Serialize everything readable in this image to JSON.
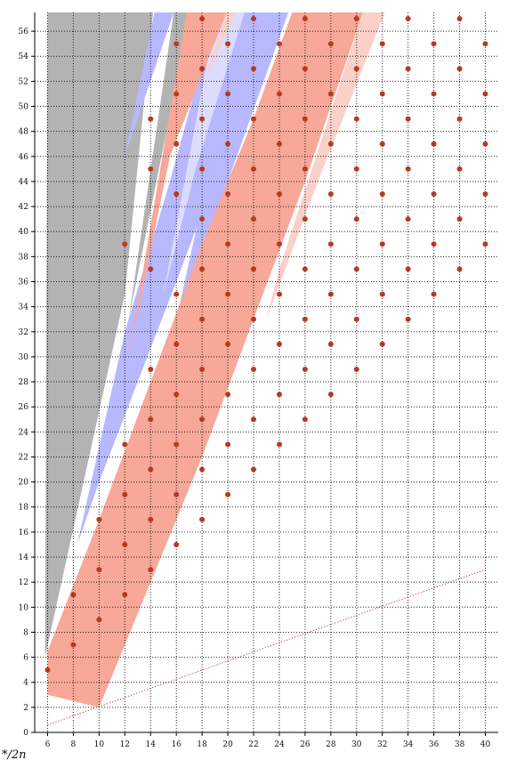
{
  "chart_data": {
    "type": "scatter",
    "title": "",
    "xlabel": "",
    "ylabel": "",
    "corner_label": "*/2n",
    "xlim": [
      5,
      41
    ],
    "ylim": [
      0,
      57.5
    ],
    "x_ticks": [
      6,
      8,
      10,
      12,
      14,
      16,
      18,
      20,
      22,
      24,
      26,
      28,
      30,
      32,
      34,
      36,
      38,
      40
    ],
    "y_ticks": [
      0,
      2,
      4,
      6,
      8,
      10,
      12,
      14,
      16,
      18,
      20,
      22,
      24,
      26,
      28,
      30,
      32,
      34,
      36,
      38,
      40,
      42,
      44,
      46,
      48,
      50,
      52,
      54,
      56
    ],
    "grid": "dotted",
    "colors": {
      "gray_region": "#b3b3b3",
      "blue_region": "#b8b8ff",
      "light_blue_region": "#dcdcff",
      "red_region": "#f7a898",
      "light_red_region": "#fbd0c8",
      "points": "#b83a1e",
      "dotted_line": "#c0392b",
      "axis": "#000000"
    },
    "regions": [
      {
        "name": "gray-region",
        "color": "gray_region",
        "polygon": [
          [
            6,
            57.5
          ],
          [
            14.2,
            57.5
          ],
          [
            12,
            35
          ],
          [
            5.8,
            6
          ]
        ]
      },
      {
        "name": "gray-wedge-upper",
        "color": "gray_region",
        "polygon": [
          [
            15.8,
            57.5
          ],
          [
            17.1,
            57.5
          ],
          [
            12.3,
            33
          ]
        ]
      },
      {
        "name": "blue-wedge-upper",
        "color": "blue_region",
        "polygon": [
          [
            14.3,
            57.5
          ],
          [
            15.8,
            57.5
          ],
          [
            12,
            46
          ]
        ]
      },
      {
        "name": "blue-band-mid",
        "color": "blue_region",
        "polygon": [
          [
            8.3,
            15
          ],
          [
            10,
            20
          ],
          [
            16,
            36
          ],
          [
            20,
            47
          ],
          [
            23.5,
            57.5
          ],
          [
            19.1,
            57.5
          ],
          [
            15.5,
            44
          ],
          [
            12,
            32
          ]
        ]
      },
      {
        "name": "light-blue-band",
        "color": "light_blue_region",
        "polygon": [
          [
            19.1,
            57.5
          ],
          [
            21.3,
            57.5
          ],
          [
            17.5,
            45
          ],
          [
            15,
            35
          ]
        ]
      },
      {
        "name": "blue-band-right",
        "color": "blue_region",
        "polygon": [
          [
            21.3,
            57.5
          ],
          [
            24.7,
            57.5
          ],
          [
            20,
            44
          ],
          [
            16,
            33
          ]
        ]
      },
      {
        "name": "red-wedge-upper",
        "color": "red_region",
        "polygon": [
          [
            12.2,
            29.5
          ],
          [
            16.8,
            57.5
          ],
          [
            19.9,
            57.5
          ],
          [
            15.5,
            46
          ]
        ]
      },
      {
        "name": "light-red-wedge-upper",
        "color": "light_red_region",
        "polygon": [
          [
            19.9,
            57.5
          ],
          [
            20.6,
            57.5
          ],
          [
            18.2,
            52
          ]
        ]
      },
      {
        "name": "red-band-lower",
        "color": "red_region",
        "polygon": [
          [
            6,
            3
          ],
          [
            6,
            6.5
          ],
          [
            10,
            17
          ],
          [
            14,
            28
          ],
          [
            18,
            39
          ],
          [
            22,
            49
          ],
          [
            25,
            57.5
          ],
          [
            30.5,
            57.5
          ],
          [
            26,
            44
          ],
          [
            22,
            33
          ],
          [
            18,
            22
          ],
          [
            14,
            12
          ],
          [
            10,
            2
          ]
        ]
      },
      {
        "name": "light-red-band-lower",
        "color": "light_red_region",
        "polygon": [
          [
            30.5,
            57.5
          ],
          [
            32.2,
            57.5
          ],
          [
            27,
            44
          ],
          [
            23,
            33
          ],
          [
            24,
            37
          ]
        ]
      }
    ],
    "dotted_line": {
      "x": [
        6,
        40
      ],
      "y": [
        0.6,
        13
      ]
    },
    "points": [
      {
        "x": 6,
        "y": [
          5
        ]
      },
      {
        "x": 8,
        "y": [
          7,
          11
        ]
      },
      {
        "x": 10,
        "y": [
          9,
          13,
          17
        ]
      },
      {
        "x": 12,
        "y": [
          11,
          15,
          19,
          23,
          39
        ]
      },
      {
        "x": 14,
        "y": [
          13,
          17,
          21,
          25,
          29,
          37,
          45,
          49
        ]
      },
      {
        "x": 16,
        "y": [
          15,
          19,
          23,
          27,
          31,
          35,
          43,
          47,
          51,
          55
        ]
      },
      {
        "x": 18,
        "y": [
          17,
          21,
          25,
          29,
          33,
          37,
          41,
          45,
          49,
          53,
          57
        ]
      },
      {
        "x": 20,
        "y": [
          19,
          23,
          27,
          31,
          35,
          39,
          43,
          47,
          51,
          55
        ]
      },
      {
        "x": 22,
        "y": [
          21,
          25,
          29,
          33,
          37,
          41,
          45,
          49,
          53,
          57
        ]
      },
      {
        "x": 24,
        "y": [
          23,
          27,
          31,
          35,
          39,
          43,
          47,
          51,
          55
        ]
      },
      {
        "x": 26,
        "y": [
          25,
          29,
          33,
          37,
          41,
          45,
          49,
          53,
          57
        ]
      },
      {
        "x": 28,
        "y": [
          27,
          31,
          35,
          39,
          43,
          47,
          51,
          55
        ]
      },
      {
        "x": 30,
        "y": [
          29,
          33,
          37,
          41,
          45,
          49,
          53,
          57
        ]
      },
      {
        "x": 32,
        "y": [
          31,
          35,
          39,
          43,
          47,
          51,
          55
        ]
      },
      {
        "x": 34,
        "y": [
          33,
          37,
          41,
          45,
          49,
          53,
          57
        ]
      },
      {
        "x": 36,
        "y": [
          35,
          39,
          43,
          47,
          51,
          55
        ]
      },
      {
        "x": 38,
        "y": [
          37,
          41,
          45,
          49,
          53,
          57
        ]
      },
      {
        "x": 40,
        "y": [
          39,
          43,
          47,
          51,
          55
        ]
      }
    ]
  }
}
